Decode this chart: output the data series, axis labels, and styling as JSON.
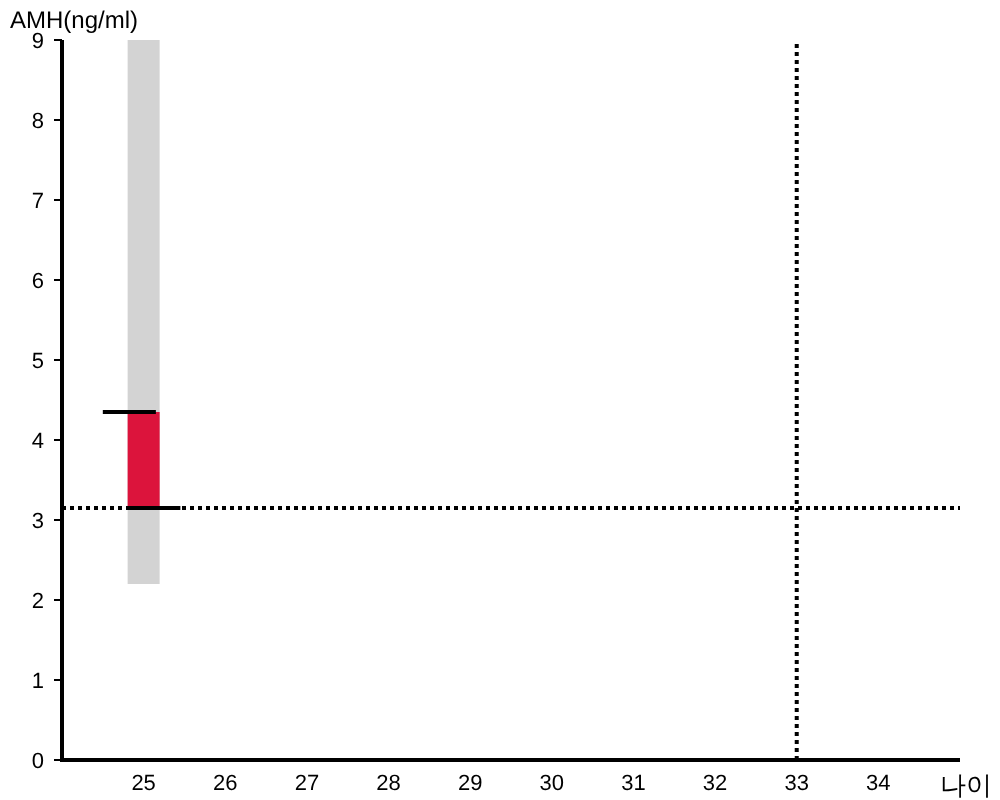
{
  "chart_data": {
    "type": "bar",
    "xlabel": "나이",
    "ylabel": "AMH(ng/ml)",
    "x": [
      25
    ],
    "xlim": [
      24,
      35
    ],
    "xticks": [
      25,
      26,
      27,
      28,
      29,
      30,
      31,
      32,
      33,
      34
    ],
    "ylim": [
      0,
      9
    ],
    "yticks": [
      0,
      1,
      2,
      3,
      4,
      5,
      6,
      7,
      8,
      9
    ],
    "series": [
      {
        "color": "#d3d3d3",
        "values": [
          6.8
        ],
        "base": [
          2.2
        ]
      },
      {
        "color": "#dc143c",
        "values": [
          1.2
        ],
        "base": [
          3.15
        ]
      },
      {
        "type": "line",
        "color": "#000000",
        "x": [
          24.5,
          25.15
        ],
        "values": [
          4.35,
          4.35
        ]
      },
      {
        "type": "line",
        "color": "#000000",
        "x": [
          24.8,
          25.45
        ],
        "values": [
          3.15,
          3.15
        ]
      }
    ],
    "ref_lines": [
      {
        "axis": "y",
        "value": 3.15,
        "color": "#000000",
        "line_style": "dotted"
      },
      {
        "axis": "x",
        "value": 33,
        "color": "#000000",
        "line_style": "dotted"
      }
    ]
  }
}
